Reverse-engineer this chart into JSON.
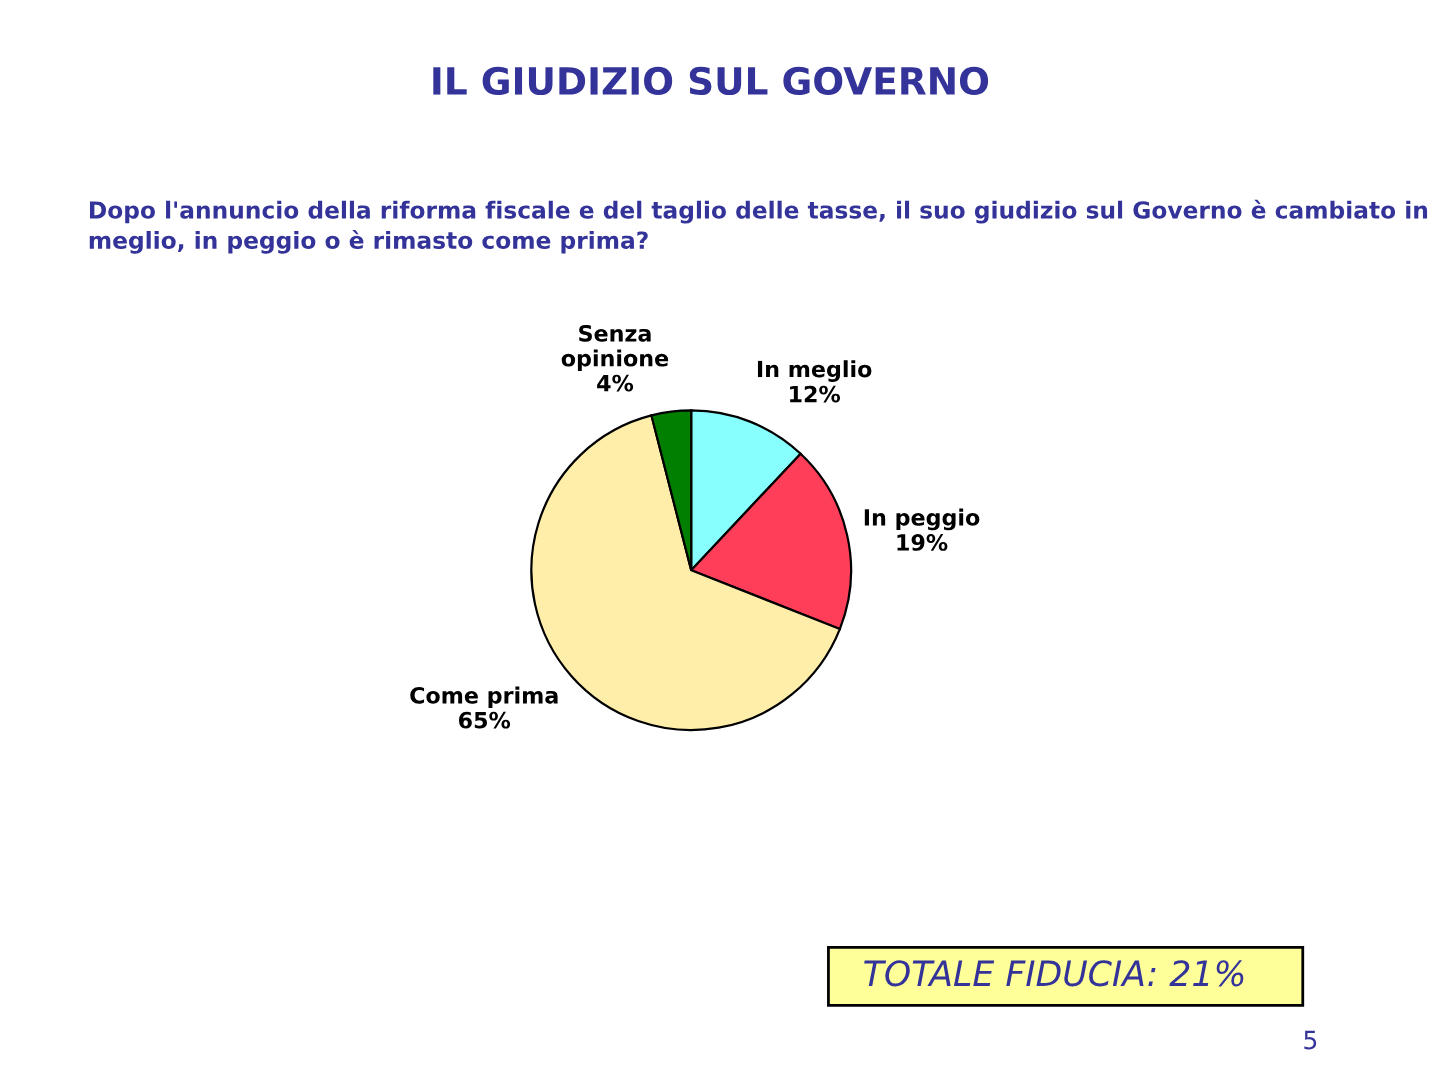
{
  "chart_data": {
    "type": "pie",
    "title": "IL GIUDIZIO SUL GOVERNO",
    "subtitle": "Dopo l'annuncio della riforma fiscale e del taglio delle tasse, il suo giudizio sul Governo è cambiato in meglio, in peggio o è rimasto come prima?",
    "categories": [
      "In meglio",
      "In peggio",
      "Come prima",
      "Senza\nopinione"
    ],
    "values": [
      12,
      19,
      65,
      4
    ],
    "value_labels": [
      "12%",
      "19%",
      "65%",
      "4%"
    ],
    "colors": [
      "#88ffff",
      "#ff3f5a",
      "#ffeeaa",
      "#007f00"
    ],
    "annotations": [
      "TOTALE FIDUCIA: 21%",
      "5"
    ]
  }
}
